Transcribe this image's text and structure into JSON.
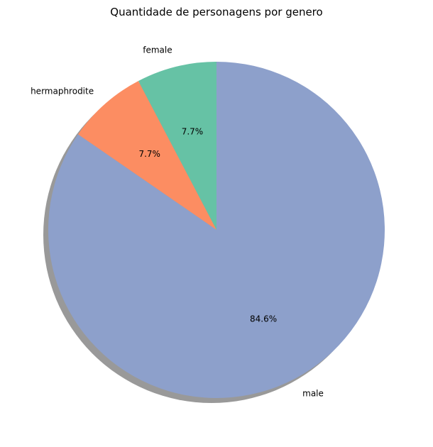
{
  "chart_data": {
    "type": "pie",
    "title": "Quantidade de personagens por genero",
    "start_angle_deg": 90,
    "direction": "counterclockwise",
    "shadow": true,
    "slices": [
      {
        "label": "female",
        "value": 1,
        "percent_label": "7.7%",
        "color": "#66c2a5"
      },
      {
        "label": "hermaphrodite",
        "value": 1,
        "percent_label": "7.7%",
        "color": "#fc8d62"
      },
      {
        "label": "male",
        "value": 11,
        "percent_label": "84.6%",
        "color": "#8da0cb"
      }
    ]
  }
}
